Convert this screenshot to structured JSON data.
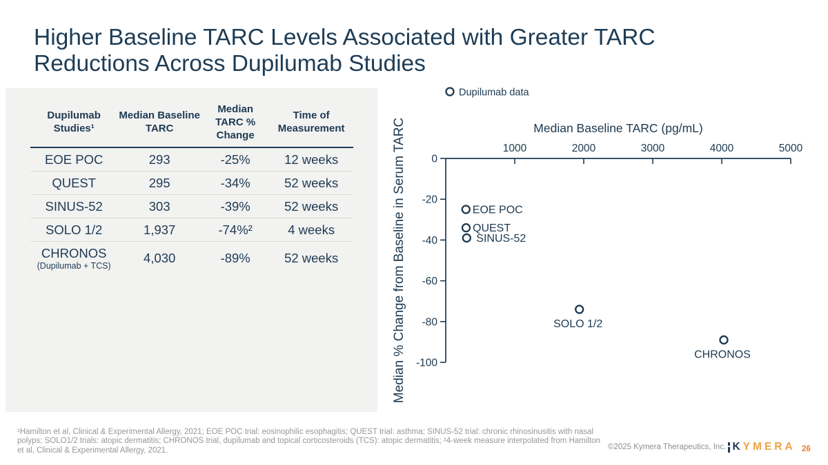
{
  "slide": {
    "title_line1": "Higher Baseline TARC Levels Associated with Greater TARC",
    "title_line2": "Reductions Across Dupilumab Studies"
  },
  "table": {
    "columns": [
      "Dupilumab Studies¹",
      "Median Baseline TARC",
      "Median TARC % Change",
      "Time of Measurement"
    ],
    "rows": [
      {
        "study": "EOE POC",
        "study_sub": "",
        "baseline": "293",
        "change": "-25%",
        "time": "12 weeks"
      },
      {
        "study": "QUEST",
        "study_sub": "",
        "baseline": "295",
        "change": "-34%",
        "time": "52 weeks"
      },
      {
        "study": "SINUS-52",
        "study_sub": "",
        "baseline": "303",
        "change": "-39%",
        "time": "52 weeks"
      },
      {
        "study": "SOLO 1/2",
        "study_sub": "",
        "baseline": "1,937",
        "change": "-74%²",
        "time": "4 weeks"
      },
      {
        "study": "CHRONOS",
        "study_sub": "(Dupilumab + TCS)",
        "baseline": "4,030",
        "change": "-89%",
        "time": "52 weeks"
      }
    ]
  },
  "chart_data": {
    "type": "scatter",
    "legend": {
      "label": "Dupilumab data",
      "marker": "open-circle",
      "position": "top-left"
    },
    "x_axis": {
      "title": "Median Baseline TARC (pg/mL)",
      "position": "top",
      "range": [
        0,
        5000
      ],
      "ticks": [
        1000,
        2000,
        3000,
        4000,
        5000
      ]
    },
    "y_axis": {
      "title": "Median % Change from Baseline in Serum TARC",
      "range": [
        0,
        -100
      ],
      "ticks": [
        0,
        -20,
        -40,
        -60,
        -80,
        -100
      ]
    },
    "grid": false,
    "series": [
      {
        "name": "Dupilumab data",
        "marker": "open-circle",
        "points": [
          {
            "label": "EOE POC",
            "x": 293,
            "y": -25,
            "label_pos": "right"
          },
          {
            "label": "QUEST",
            "x": 295,
            "y": -34,
            "label_pos": "right"
          },
          {
            "label": "SINUS-52",
            "x": 303,
            "y": -39,
            "label_pos": "right-gap"
          },
          {
            "label": "SOLO 1/2",
            "x": 1937,
            "y": -74,
            "label_pos": "below"
          },
          {
            "label": "CHRONOS",
            "x": 4030,
            "y": -89,
            "label_pos": "below"
          }
        ]
      }
    ]
  },
  "footnote": "¹Hamilton et al, Clinical & Experimental Allergy, 2021; EOE POC trial: eosinophilic esophagitis; QUEST trial: asthma; SINUS-52 trial: chronic rhinosinusitis with nasal polyps; SOLO1/2 trials: atopic dermatitis; CHRONOS trial, dupilumab and topical corticosteroids (TCS): atopic dermatitis; ²4-week measure interpolated from Hamilton et al, Clinical & Experimental Allergy, 2021.",
  "footer": {
    "copyright": "©2025 Kymera Therapeutics, Inc.",
    "logo_k": "K",
    "logo_rest": "YMERA",
    "page_number": "26"
  },
  "colors": {
    "navy": "#1c3950",
    "orange": "#eda243",
    "orange_dark": "#e87b2e",
    "gray_text": "#979797",
    "panel_gray": "#f2f2f1"
  }
}
